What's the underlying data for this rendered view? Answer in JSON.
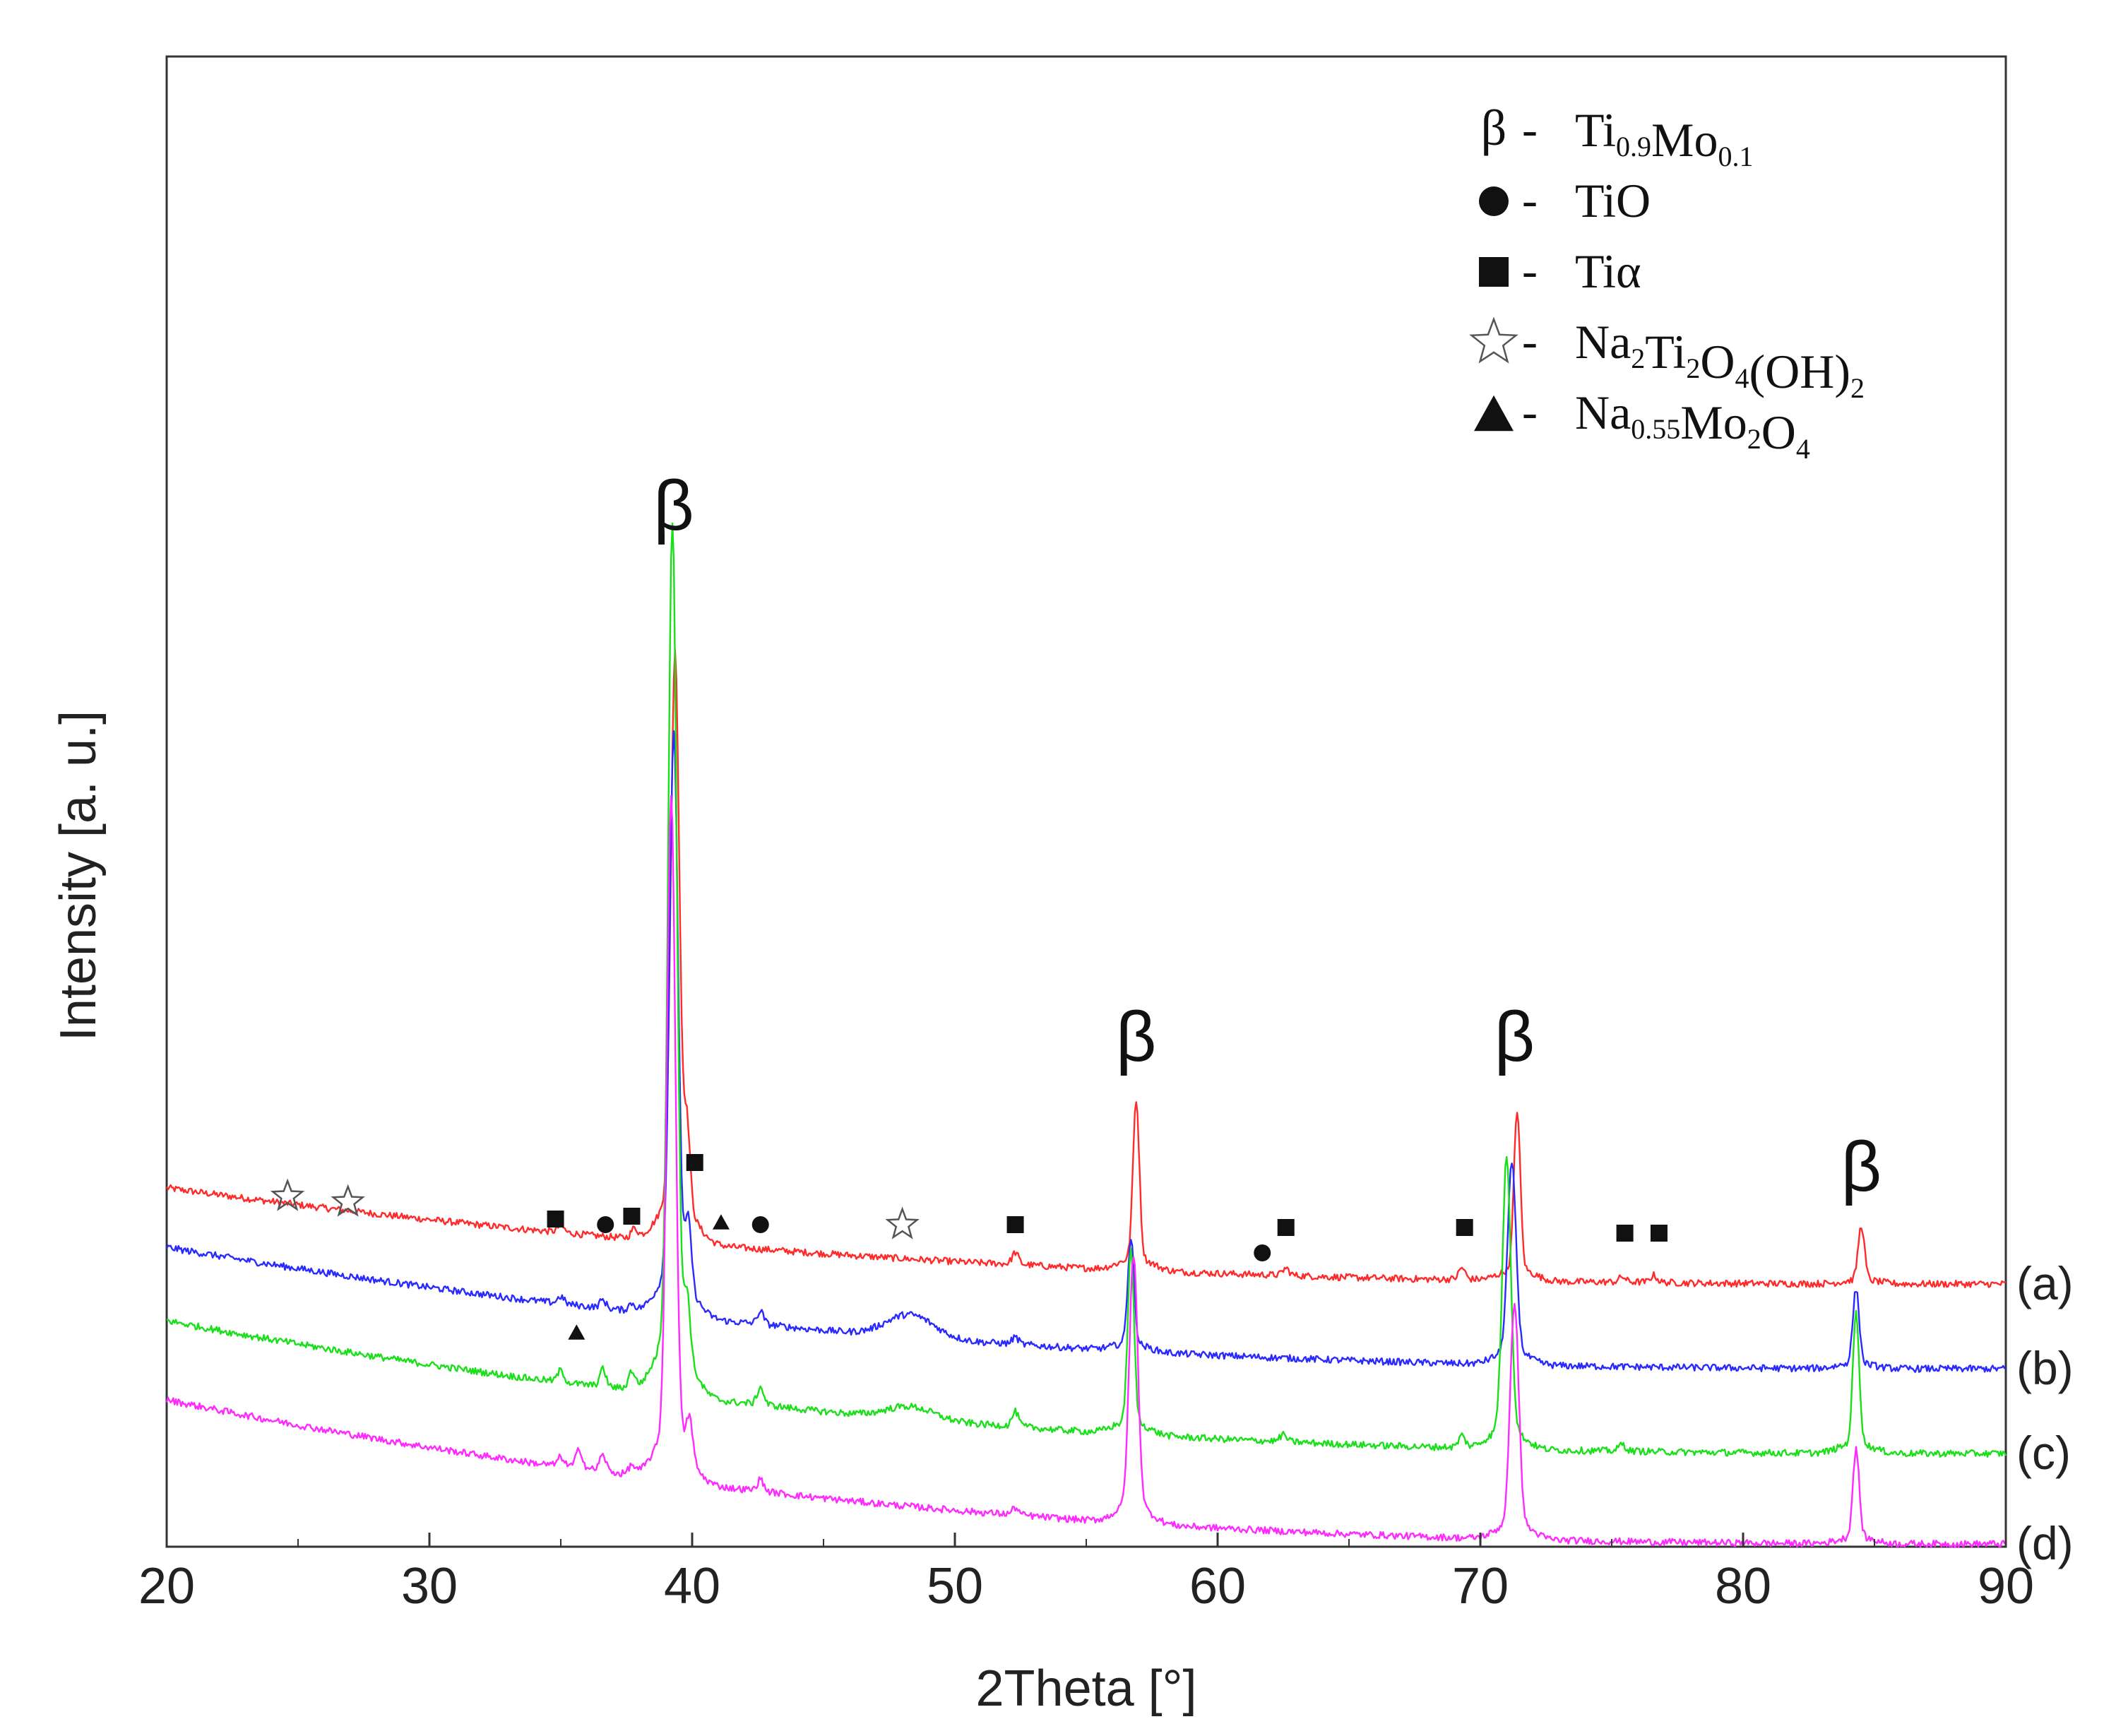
{
  "chart_data": {
    "type": "line",
    "title": "",
    "xlabel": "2Theta [°]",
    "ylabel": "Intensity [a. u.]",
    "xlim": [
      20,
      90
    ],
    "x_ticks": [
      20,
      30,
      40,
      50,
      60,
      70,
      80,
      90
    ],
    "x_tick_labels": [
      "20",
      "30",
      "40",
      "50",
      "60",
      "70",
      "80",
      "90"
    ],
    "y_ticks": [],
    "grid": false,
    "legend_position": "top-right",
    "series": [
      {
        "name": "(a)",
        "color": "#ff2a2a",
        "baseline_start": 3.35,
        "baseline_end": 1.65,
        "broad_humps": [],
        "peaks": [
          {
            "x": 35.0,
            "h": 0.12
          },
          {
            "x": 37.8,
            "h": 0.16
          },
          {
            "x": 39.35,
            "h": 9.6
          },
          {
            "x": 39.8,
            "h": 1.5
          },
          {
            "x": 52.3,
            "h": 0.2
          },
          {
            "x": 56.9,
            "h": 2.8
          },
          {
            "x": 62.6,
            "h": 0.12
          },
          {
            "x": 69.3,
            "h": 0.2
          },
          {
            "x": 71.4,
            "h": 2.8
          },
          {
            "x": 75.4,
            "h": 0.09
          },
          {
            "x": 76.6,
            "h": 0.12
          },
          {
            "x": 84.5,
            "h": 0.95
          }
        ]
      },
      {
        "name": "(b)",
        "color": "#2a2aff",
        "baseline_start": 2.3,
        "baseline_end": 0.15,
        "broad_humps": [
          {
            "x": 48.3,
            "h": 0.4,
            "w": 0.9
          }
        ],
        "peaks": [
          {
            "x": 35.0,
            "h": 0.12
          },
          {
            "x": 36.6,
            "h": 0.14
          },
          {
            "x": 37.7,
            "h": 0.12
          },
          {
            "x": 39.3,
            "h": 9.5
          },
          {
            "x": 39.85,
            "h": 1.2
          },
          {
            "x": 42.6,
            "h": 0.22
          },
          {
            "x": 52.3,
            "h": 0.12
          },
          {
            "x": 56.7,
            "h": 1.85
          },
          {
            "x": 71.2,
            "h": 3.3
          },
          {
            "x": 84.3,
            "h": 1.3
          }
        ]
      },
      {
        "name": "(c)",
        "color": "#1cdf1c",
        "baseline_start": 1.0,
        "baseline_end": -1.35,
        "broad_humps": [
          {
            "x": 48.3,
            "h": 0.22,
            "w": 0.9
          }
        ],
        "peaks": [
          {
            "x": 35.0,
            "h": 0.2
          },
          {
            "x": 36.6,
            "h": 0.3
          },
          {
            "x": 37.7,
            "h": 0.3
          },
          {
            "x": 39.25,
            "h": 14.3
          },
          {
            "x": 39.8,
            "h": 1.1
          },
          {
            "x": 42.6,
            "h": 0.3
          },
          {
            "x": 52.3,
            "h": 0.25
          },
          {
            "x": 56.7,
            "h": 3.0
          },
          {
            "x": 62.5,
            "h": 0.12
          },
          {
            "x": 69.3,
            "h": 0.2
          },
          {
            "x": 71.0,
            "h": 4.8
          },
          {
            "x": 75.4,
            "h": 0.12
          },
          {
            "x": 84.3,
            "h": 2.3
          }
        ]
      },
      {
        "name": "(d)",
        "color": "#ff2aff",
        "baseline_start": -0.4,
        "baseline_end": -2.95,
        "broad_humps": [],
        "peaks": [
          {
            "x": 35.0,
            "h": 0.15
          },
          {
            "x": 35.7,
            "h": 0.32
          },
          {
            "x": 36.6,
            "h": 0.28
          },
          {
            "x": 37.7,
            "h": 0.15
          },
          {
            "x": 39.2,
            "h": 11.2
          },
          {
            "x": 39.9,
            "h": 0.7
          },
          {
            "x": 42.6,
            "h": 0.2
          },
          {
            "x": 52.3,
            "h": 0.12
          },
          {
            "x": 56.8,
            "h": 4.4
          },
          {
            "x": 71.3,
            "h": 3.9
          },
          {
            "x": 84.3,
            "h": 1.55
          }
        ]
      }
    ],
    "annotations": [
      {
        "label": "β",
        "x": 39.3,
        "y": 15.0,
        "kind": "text"
      },
      {
        "label": "β",
        "x": 56.9,
        "y": 5.6,
        "kind": "text"
      },
      {
        "label": "β",
        "x": 71.3,
        "y": 5.6,
        "kind": "text"
      },
      {
        "label": "β",
        "x": 84.5,
        "y": 3.3,
        "kind": "text"
      },
      {
        "kind": "star",
        "x": 24.6,
        "y": 3.2
      },
      {
        "kind": "star",
        "x": 26.9,
        "y": 3.1
      },
      {
        "kind": "square",
        "x": 34.8,
        "y": 2.8
      },
      {
        "kind": "circle",
        "x": 36.7,
        "y": 2.7
      },
      {
        "kind": "square",
        "x": 37.7,
        "y": 2.85
      },
      {
        "kind": "square",
        "x": 40.1,
        "y": 3.8
      },
      {
        "kind": "triangle",
        "x": 41.1,
        "y": 2.75
      },
      {
        "kind": "circle",
        "x": 42.6,
        "y": 2.7
      },
      {
        "kind": "star",
        "x": 48.0,
        "y": 2.7
      },
      {
        "kind": "square",
        "x": 52.3,
        "y": 2.7
      },
      {
        "kind": "circle",
        "x": 61.7,
        "y": 2.2
      },
      {
        "kind": "square",
        "x": 62.6,
        "y": 2.65
      },
      {
        "kind": "square",
        "x": 69.4,
        "y": 2.65
      },
      {
        "kind": "square",
        "x": 75.5,
        "y": 2.55
      },
      {
        "kind": "square",
        "x": 76.8,
        "y": 2.55
      },
      {
        "kind": "triangle",
        "x": 35.6,
        "y": 0.8
      }
    ],
    "legend": [
      {
        "symbol": "β",
        "text": "Ti",
        "parts": [
          [
            "Ti",
            "norm"
          ],
          [
            "0.9",
            "sub"
          ],
          [
            "Mo",
            "norm"
          ],
          [
            "0.1",
            "sub"
          ]
        ]
      },
      {
        "symbol": "circle",
        "parts": [
          [
            "TiO",
            "norm"
          ]
        ]
      },
      {
        "symbol": "square",
        "parts": [
          [
            "Tiα",
            "norm"
          ]
        ]
      },
      {
        "symbol": "star",
        "parts": [
          [
            "Na",
            "norm"
          ],
          [
            "2",
            "sub"
          ],
          [
            "Ti",
            "norm"
          ],
          [
            "2",
            "sub"
          ],
          [
            "O",
            "norm"
          ],
          [
            "4",
            "sub"
          ],
          [
            "(OH)",
            "norm"
          ],
          [
            "2",
            "sub"
          ]
        ]
      },
      {
        "symbol": "triangle",
        "parts": [
          [
            "Na",
            "norm"
          ],
          [
            "0.55",
            "sub"
          ],
          [
            "Mo",
            "norm"
          ],
          [
            "2",
            "sub"
          ],
          [
            "O",
            "norm"
          ],
          [
            "4",
            "sub"
          ]
        ]
      }
    ]
  }
}
